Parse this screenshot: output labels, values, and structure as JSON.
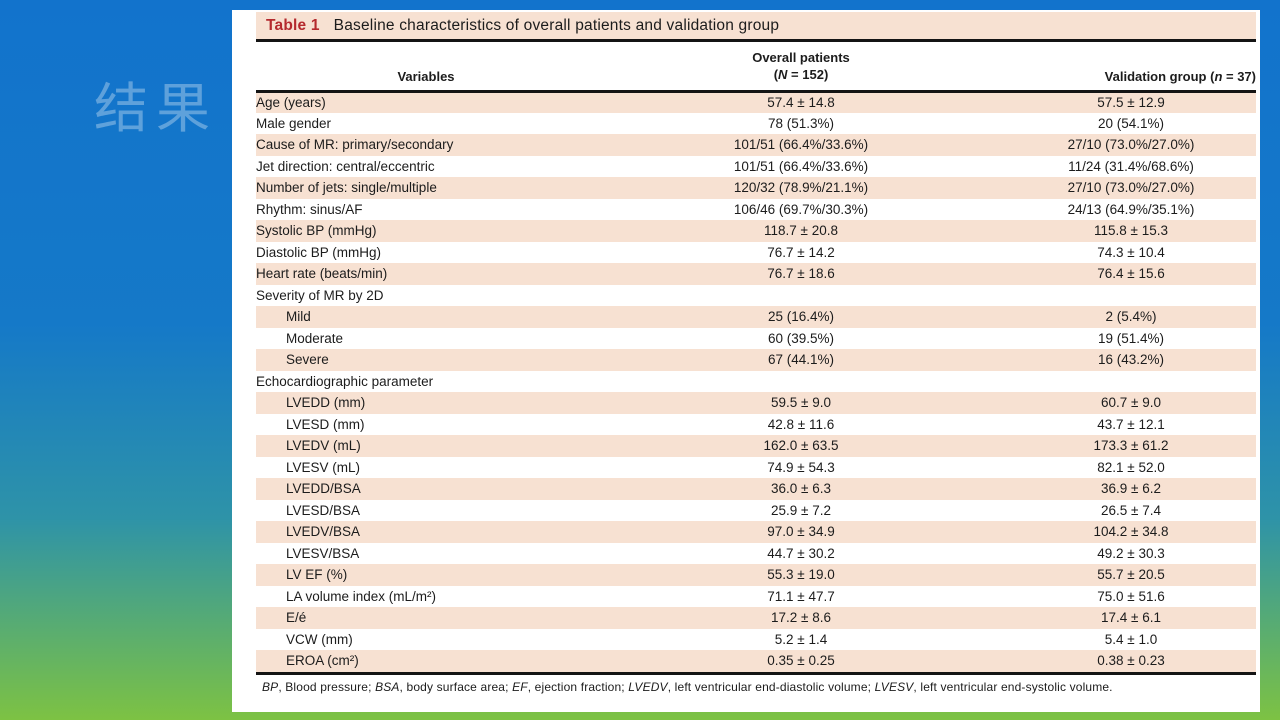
{
  "slide": {
    "section_label": "结果"
  },
  "colors": {
    "bg_top": "#1273cc",
    "bg_bottom": "#7dc243",
    "panel_bg": "#ffffff",
    "stripe": "#f7e1d2",
    "title_red": "#b42a2e",
    "rule_black": "#141414",
    "watermark": "rgba(255,255,255,0.32)"
  },
  "table": {
    "title_label": "Table 1",
    "title_text": "Baseline characteristics of overall patients and validation group",
    "header": {
      "variables": "Variables",
      "overall_line1": "Overall patients",
      "overall_line2": "(N = 152)",
      "validation": "Validation group (n = 37)"
    },
    "italic_terms": [
      "LVEDV",
      "LVESV",
      "BP",
      "BSA",
      "EF",
      "N",
      "n"
    ],
    "rows": [
      {
        "label": "Age (years)",
        "overall": "57.4 ± 14.8",
        "validation": "57.5 ± 12.9"
      },
      {
        "label": "Male gender",
        "overall": "78 (51.3%)",
        "validation": "20 (54.1%)"
      },
      {
        "label": "Cause of MR: primary/secondary",
        "overall": "101/51 (66.4%/33.6%)",
        "validation": "27/10 (73.0%/27.0%)"
      },
      {
        "label": "Jet direction: central/eccentric",
        "overall": "101/51 (66.4%/33.6%)",
        "validation": "11/24 (31.4%/68.6%)"
      },
      {
        "label": "Number of jets: single/multiple",
        "overall": "120/32 (78.9%/21.1%)",
        "validation": "27/10 (73.0%/27.0%)"
      },
      {
        "label": "Rhythm: sinus/AF",
        "overall": "106/46 (69.7%/30.3%)",
        "validation": "24/13 (64.9%/35.1%)"
      },
      {
        "label": "Systolic BP (mmHg)",
        "overall": "118.7 ± 20.8",
        "validation": "115.8 ± 15.3"
      },
      {
        "label": "Diastolic BP (mmHg)",
        "overall": "76.7 ± 14.2",
        "validation": "74.3 ± 10.4"
      },
      {
        "label": "Heart rate (beats/min)",
        "overall": "76.7 ± 18.6",
        "validation": "76.4 ± 15.6"
      },
      {
        "label": "Severity of MR by 2D",
        "overall": "",
        "validation": "",
        "section": true
      },
      {
        "label": "Mild",
        "overall": "25 (16.4%)",
        "validation": "2 (5.4%)",
        "indent": 1
      },
      {
        "label": "Moderate",
        "overall": "60 (39.5%)",
        "validation": "19 (51.4%)",
        "indent": 1
      },
      {
        "label": "Severe",
        "overall": "67 (44.1%)",
        "validation": "16 (43.2%)",
        "indent": 1
      },
      {
        "label": "Echocardiographic parameter",
        "overall": "",
        "validation": "",
        "section": true
      },
      {
        "label": "LVEDD (mm)",
        "overall": "59.5 ± 9.0",
        "validation": "60.7 ± 9.0",
        "indent": 1
      },
      {
        "label": "LVESD (mm)",
        "overall": "42.8 ± 11.6",
        "validation": "43.7 ± 12.1",
        "indent": 1
      },
      {
        "label": "LVEDV (mL)",
        "overall": "162.0 ± 63.5",
        "validation": "173.3 ± 61.2",
        "indent": 1
      },
      {
        "label": "LVESV (mL)",
        "overall": "74.9 ± 54.3",
        "validation": "82.1 ± 52.0",
        "indent": 1
      },
      {
        "label": "LVEDD/BSA",
        "overall": "36.0 ± 6.3",
        "validation": "36.9 ± 6.2",
        "indent": 1
      },
      {
        "label": "LVESD/BSA",
        "overall": "25.9 ± 7.2",
        "validation": "26.5 ± 7.4",
        "indent": 1
      },
      {
        "label": "LVEDV/BSA",
        "overall": "97.0 ± 34.9",
        "validation": "104.2 ± 34.8",
        "indent": 1
      },
      {
        "label": "LVESV/BSA",
        "overall": "44.7 ± 30.2",
        "validation": "49.2 ± 30.3",
        "indent": 1
      },
      {
        "label": "LV EF (%)",
        "overall": "55.3 ± 19.0",
        "validation": "55.7 ± 20.5",
        "indent": 1
      },
      {
        "label": "LA volume index (mL/m²)",
        "overall": "71.1 ± 47.7",
        "validation": "75.0 ± 51.6",
        "indent": 1
      },
      {
        "label": "E/é",
        "overall": "17.2 ± 8.6",
        "validation": "17.4 ± 6.1",
        "indent": 1
      },
      {
        "label": "VCW (mm)",
        "overall": "5.2 ± 1.4",
        "validation": "5.4 ± 1.0",
        "indent": 1
      },
      {
        "label": "EROA (cm²)",
        "overall": "0.35 ± 0.25",
        "validation": "0.38 ± 0.23",
        "indent": 1
      }
    ],
    "footnote": "BP, Blood pressure; BSA, body surface area; EF, ejection fraction; LVEDV, left ventricular end-diastolic volume; LVESV, left ventricular end-systolic volume."
  }
}
